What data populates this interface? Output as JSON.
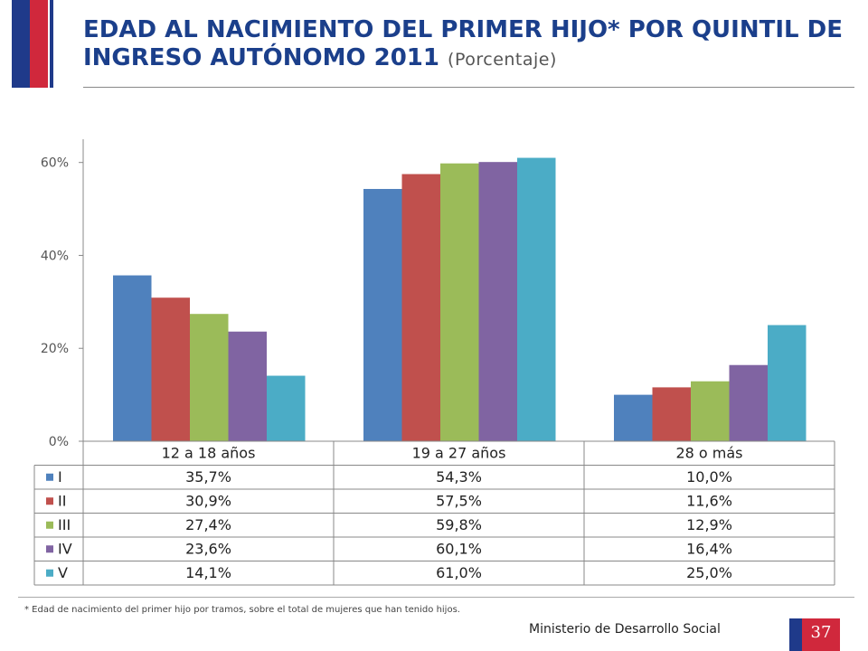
{
  "header": {
    "title": "EDAD AL NACIMIENTO DEL PRIMER HIJO* POR QUINTIL DE INGRESO AUTÓNOMO 2011",
    "subtitle": "(Porcentaje)"
  },
  "chart_data": {
    "type": "bar",
    "categories": [
      "12 a 18 años",
      "19 a 27 años",
      "28 o más"
    ],
    "series": [
      {
        "name": "I",
        "values": [
          35.7,
          54.3,
          10.0
        ],
        "labels": [
          "35,7%",
          "54,3%",
          "10,0%"
        ],
        "color": "#4f81bd"
      },
      {
        "name": "II",
        "values": [
          30.9,
          57.5,
          11.6
        ],
        "labels": [
          "30,9%",
          "57,5%",
          "11,6%"
        ],
        "color": "#c0504d"
      },
      {
        "name": "III",
        "values": [
          27.4,
          59.8,
          12.9
        ],
        "labels": [
          "27,4%",
          "59,8%",
          "12,9%"
        ],
        "color": "#9bbb59"
      },
      {
        "name": "IV",
        "values": [
          23.6,
          60.1,
          16.4
        ],
        "labels": [
          "23,6%",
          "60,1%",
          "16,4%"
        ],
        "color": "#8064a2"
      },
      {
        "name": "V",
        "values": [
          14.1,
          61.0,
          25.0
        ],
        "labels": [
          "14,1%",
          "61,0%",
          "25,0%"
        ],
        "color": "#4bacc6"
      }
    ],
    "ylim": [
      0,
      65
    ],
    "yticks": [
      0,
      20,
      40,
      60
    ],
    "ytick_labels": [
      "0%",
      "20%",
      "40%",
      "60%"
    ],
    "grid": false,
    "legend": "data-table"
  },
  "footer": {
    "note": "* Edad de nacimiento del primer hijo por tramos, sobre el total de mujeres que han tenido hijos.",
    "ministry": "Ministerio de Desarrollo Social",
    "page_number": "37"
  }
}
